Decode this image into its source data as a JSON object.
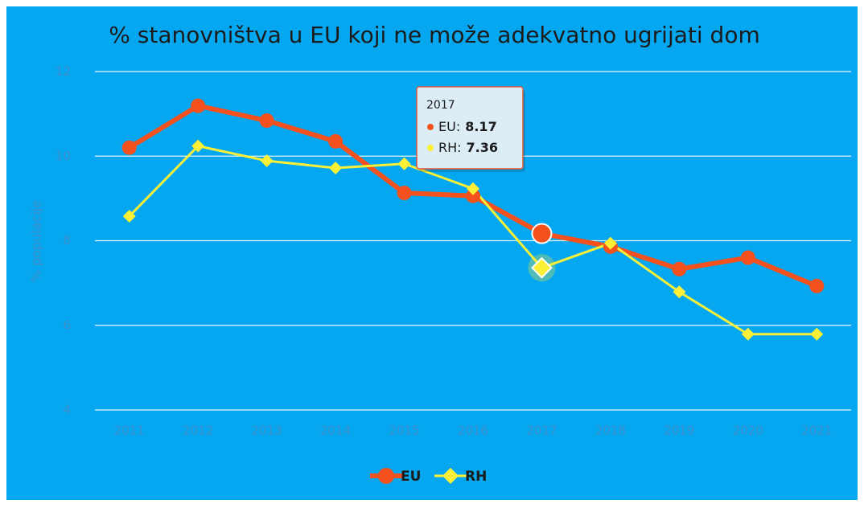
{
  "chart_data": {
    "type": "line",
    "title": "% stanovništva u EU koji ne može adekvatno ugrijati dom",
    "y_label": "% populacije",
    "categories": [
      "2011",
      "2012",
      "2013",
      "2014",
      "2015",
      "2016",
      "2017",
      "2018",
      "2019",
      "2020",
      "2021"
    ],
    "series": [
      {
        "name": "EU",
        "color": "#f4511e",
        "marker": "circle",
        "values": [
          10.2,
          11.19,
          10.84,
          10.35,
          9.13,
          9.06,
          8.17,
          7.86,
          7.33,
          7.6,
          6.93
        ]
      },
      {
        "name": "RH",
        "color": "#fbf036",
        "marker": "diamond",
        "values": [
          8.58,
          10.24,
          9.89,
          9.72,
          9.82,
          9.23,
          7.36,
          7.94,
          6.79,
          5.79,
          5.79
        ]
      }
    ],
    "ylim": [
      4,
      12
    ],
    "yticks": [
      4,
      6,
      8,
      10,
      12
    ],
    "grid": true,
    "legend": "bottom",
    "tooltip": {
      "title": "2017",
      "items": [
        {
          "label": "EU:",
          "value": 8.17
        },
        {
          "label": "RH:",
          "value": 7.36
        }
      ]
    }
  }
}
